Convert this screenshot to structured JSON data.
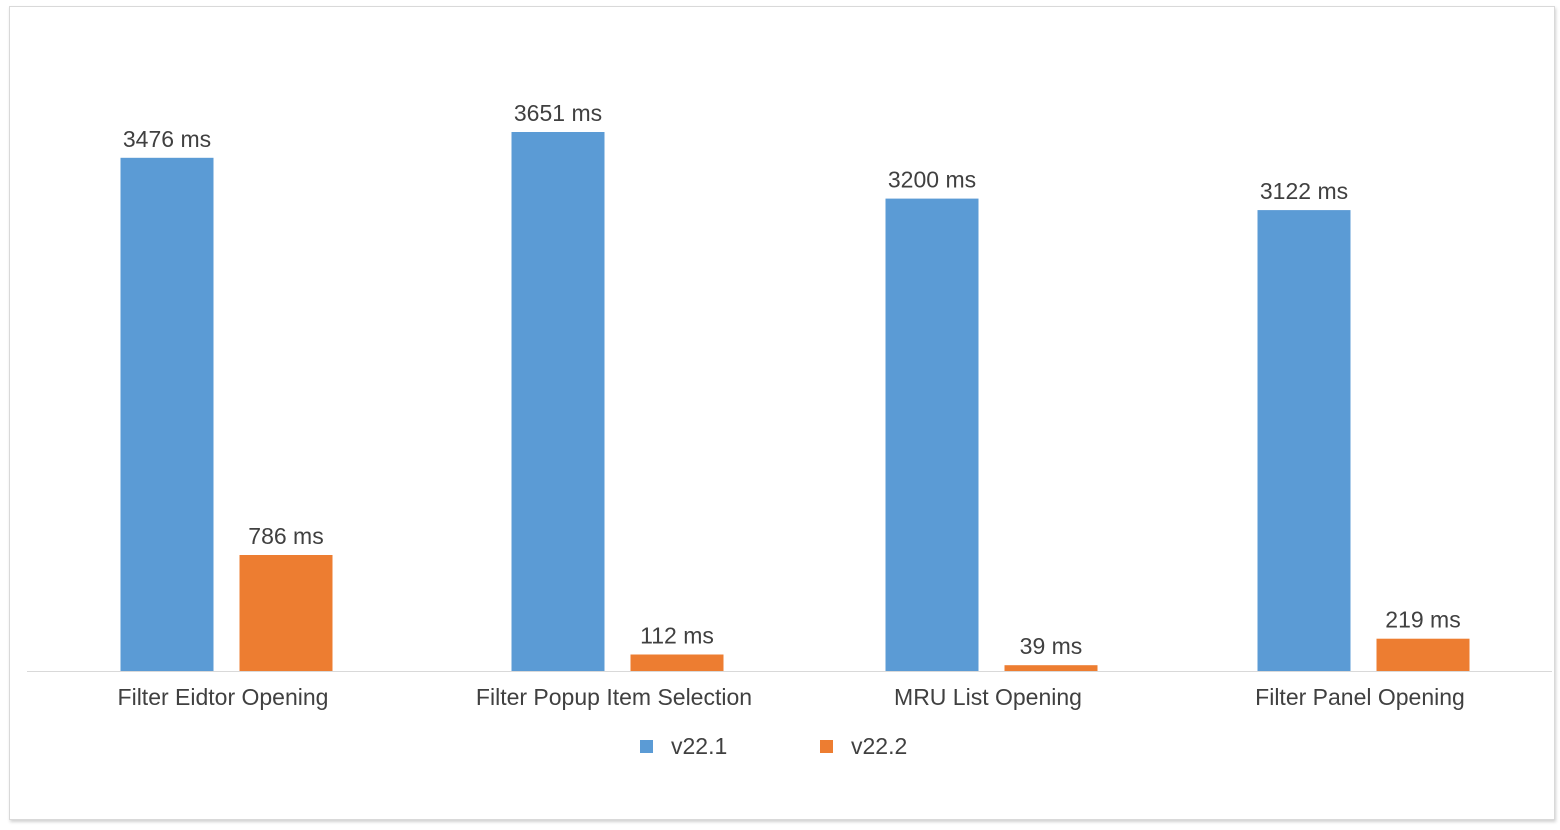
{
  "chart_data": {
    "type": "bar",
    "categories": [
      "Filter Eidtor Opening",
      "Filter Popup Item Selection",
      "MRU List Opening",
      "Filter Panel Opening"
    ],
    "series": [
      {
        "name": "v22.1",
        "color": "#5b9bd5",
        "values": [
          3476,
          3651,
          3200,
          3122
        ],
        "labels": [
          "3476 ms",
          "3651 ms",
          "3200 ms",
          "3122 ms"
        ]
      },
      {
        "name": "v22.2",
        "color": "#ed7d31",
        "values": [
          786,
          112,
          39,
          219
        ],
        "labels": [
          "786 ms",
          "112 ms",
          "39 ms",
          "219 ms"
        ]
      }
    ],
    "ylim": [
      0,
      3651
    ],
    "grid": false,
    "legend_position": "bottom",
    "title": "",
    "xlabel": "",
    "ylabel": ""
  }
}
